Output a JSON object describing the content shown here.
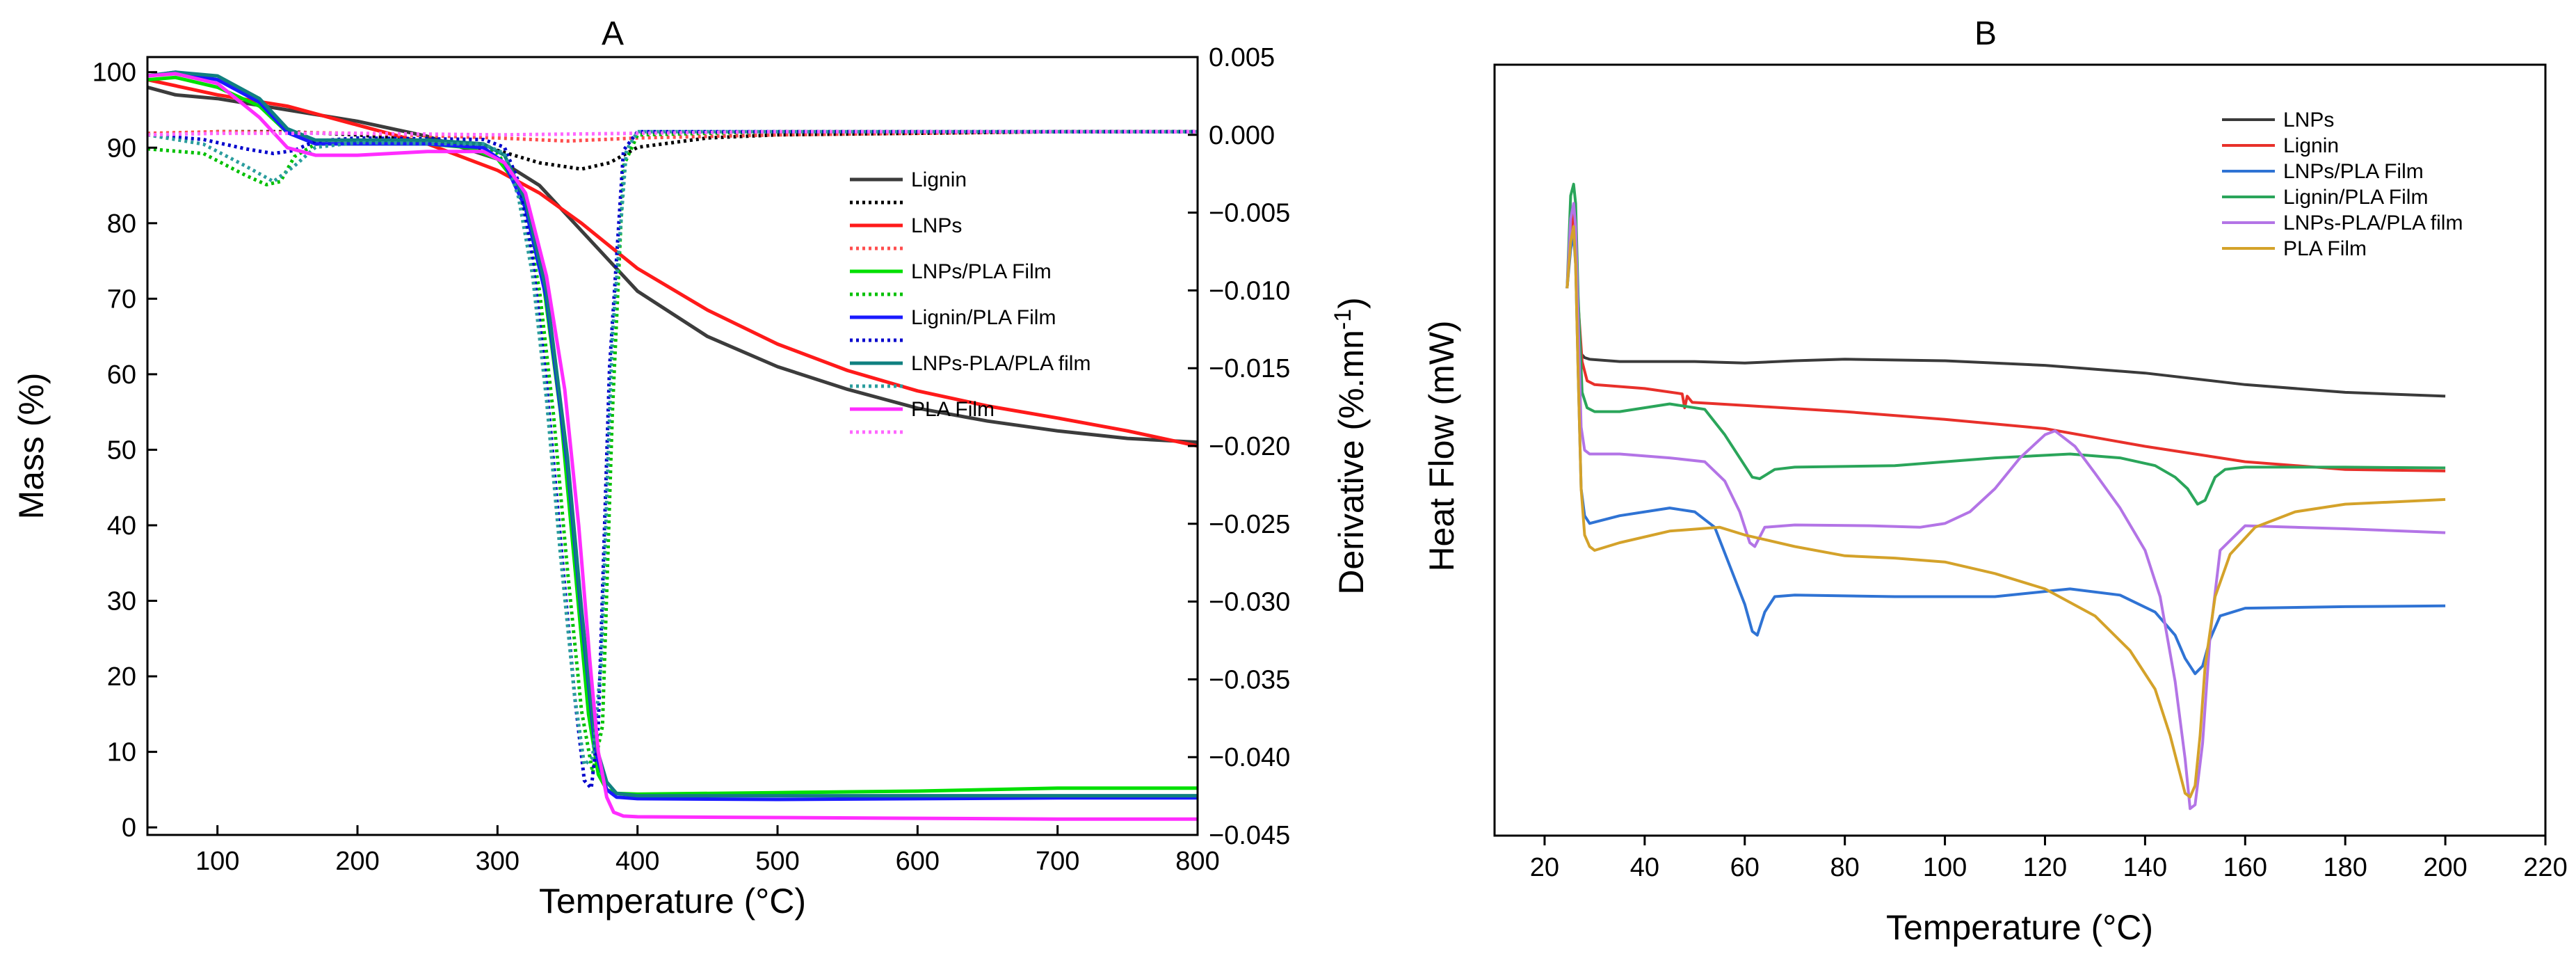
{
  "chart_data": [
    {
      "panel": "A",
      "type": "line",
      "title": "A",
      "xlabel": "Temperature (°C)",
      "ylabel": "Mass (%)",
      "y2label": "Derivative (%.mn-1)",
      "xlim": [
        50,
        800
      ],
      "ylim": [
        -1,
        102
      ],
      "y2lim": [
        -0.045,
        0.005
      ],
      "xticks": [
        100,
        200,
        300,
        400,
        500,
        600,
        700,
        800
      ],
      "yticks": [
        0,
        10,
        20,
        30,
        40,
        50,
        60,
        70,
        80,
        90,
        100
      ],
      "y2ticks": [
        0.005,
        0.0,
        -0.005,
        -0.01,
        -0.015,
        -0.02,
        -0.025,
        -0.03,
        -0.035,
        -0.04,
        -0.045
      ],
      "y2ticklabels": [
        "0.005",
        "0.000",
        "−0.005",
        "−0.010",
        "−0.015",
        "−0.020",
        "−0.025",
        "−0.030",
        "−0.035",
        "−0.040",
        "−0.045"
      ],
      "legend_position": "right",
      "series": [
        {
          "name": "Lignin",
          "color": "#3c3c3c",
          "style": "solid",
          "axis": "left",
          "x": [
            50,
            70,
            100,
            150,
            200,
            250,
            300,
            330,
            360,
            380,
            400,
            450,
            500,
            550,
            600,
            650,
            700,
            750,
            800
          ],
          "y": [
            98,
            97,
            96.5,
            95,
            93.5,
            91.5,
            88.5,
            85,
            79,
            75,
            71,
            65,
            61,
            58,
            55.5,
            53.8,
            52.5,
            51.5,
            51
          ]
        },
        {
          "name": "Lignin",
          "color": "#000000",
          "style": "dotted",
          "axis": "right",
          "x": [
            50,
            100,
            150,
            200,
            250,
            300,
            330,
            360,
            380,
            400,
            450,
            500,
            600,
            700,
            800
          ],
          "y": [
            0.0,
            0.0002,
            0.0002,
            0.0,
            -0.0004,
            -0.001,
            -0.0018,
            -0.0022,
            -0.0018,
            -0.0008,
            -0.0002,
            0.0,
            0.0001,
            0.0002,
            0.0002
          ]
        },
        {
          "name": "LNPs",
          "color": "#ff1a1a",
          "style": "solid",
          "axis": "left",
          "x": [
            50,
            100,
            150,
            200,
            250,
            300,
            330,
            360,
            380,
            400,
            450,
            500,
            550,
            600,
            650,
            700,
            750,
            800
          ],
          "y": [
            99,
            97,
            95.5,
            93,
            90.5,
            87,
            84,
            80,
            77,
            74,
            68.5,
            64,
            60.5,
            57.8,
            55.8,
            54.2,
            52.5,
            50.5
          ]
        },
        {
          "name": "LNPs",
          "color": "#ff4d4d",
          "style": "dotted",
          "axis": "right",
          "x": [
            50,
            100,
            200,
            300,
            350,
            400,
            500,
            600,
            700,
            800
          ],
          "y": [
            0.0001,
            0.0002,
            0.0001,
            -0.0002,
            -0.0004,
            -0.0002,
            0.0,
            0.0001,
            0.0002,
            0.0002
          ]
        },
        {
          "name": "LNPs/PLA Film",
          "color": "#00e000",
          "style": "solid",
          "axis": "left",
          "x": [
            50,
            70,
            100,
            130,
            150,
            170,
            200,
            250,
            280,
            300,
            315,
            330,
            345,
            355,
            365,
            372,
            378,
            385,
            400,
            500,
            600,
            700,
            800
          ],
          "y": [
            99,
            99.3,
            98,
            95.5,
            92,
            90.5,
            90.5,
            90.5,
            90,
            88.5,
            85,
            76,
            55,
            35,
            15,
            7,
            5,
            4.5,
            4.4,
            4.6,
            4.8,
            5.2,
            5.2
          ]
        },
        {
          "name": "LNPs/PLA Film",
          "color": "#00c000",
          "style": "dotted",
          "axis": "right",
          "x": [
            50,
            90,
            120,
            135,
            145,
            155,
            170,
            200,
            250,
            290,
            300,
            310,
            320,
            330,
            340,
            350,
            360,
            368,
            375,
            382,
            390,
            400,
            500,
            600,
            700,
            800
          ],
          "y": [
            -0.0009,
            -0.0012,
            -0.0026,
            -0.0032,
            -0.003,
            -0.0014,
            -0.0006,
            -0.0005,
            -0.0005,
            -0.0008,
            -0.0012,
            -0.0025,
            -0.005,
            -0.01,
            -0.018,
            -0.028,
            -0.037,
            -0.041,
            -0.038,
            -0.018,
            -0.002,
            0.0,
            0.0002,
            0.0002,
            0.0002,
            0.0002
          ]
        },
        {
          "name": "Lignin/PLA Film",
          "color": "#1a1aff",
          "style": "solid",
          "axis": "left",
          "x": [
            50,
            70,
            100,
            130,
            150,
            170,
            200,
            250,
            290,
            305,
            320,
            335,
            350,
            360,
            370,
            378,
            385,
            400,
            500,
            600,
            700,
            800
          ],
          "y": [
            99.5,
            100,
            99,
            96,
            92,
            90.5,
            90.5,
            90.5,
            90,
            88,
            82,
            70,
            48,
            28,
            10,
            5,
            4,
            3.8,
            3.7,
            3.8,
            3.9,
            3.9
          ]
        },
        {
          "name": "Lignin/PLA Film",
          "color": "#0000cc",
          "style": "dotted",
          "axis": "right",
          "x": [
            50,
            90,
            120,
            140,
            155,
            170,
            200,
            290,
            305,
            315,
            325,
            335,
            345,
            355,
            362,
            367,
            372,
            380,
            390,
            400,
            800
          ],
          "y": [
            0.0,
            -0.0003,
            -0.0009,
            -0.0012,
            -0.001,
            -0.0004,
            -0.0002,
            -0.0003,
            -0.0008,
            -0.003,
            -0.008,
            -0.016,
            -0.026,
            -0.036,
            -0.0415,
            -0.042,
            -0.038,
            -0.015,
            -0.001,
            0.0002,
            0.0002
          ]
        },
        {
          "name": "LNPs-PLA/PLA film",
          "color": "#108080",
          "style": "solid",
          "axis": "left",
          "x": [
            50,
            70,
            100,
            130,
            150,
            170,
            200,
            250,
            290,
            305,
            320,
            335,
            350,
            360,
            370,
            378,
            385,
            400,
            800
          ],
          "y": [
            99.5,
            100,
            99.5,
            96.5,
            92.5,
            91,
            91,
            91,
            90.5,
            89,
            83,
            71,
            49,
            29,
            11,
            6,
            4.5,
            4.2,
            4.2
          ]
        },
        {
          "name": "LNPs-PLA/PLA film",
          "color": "#2a9d9d",
          "style": "dotted",
          "axis": "right",
          "x": [
            50,
            90,
            120,
            140,
            155,
            170,
            200,
            290,
            305,
            315,
            325,
            335,
            345,
            355,
            362,
            368,
            374,
            382,
            392,
            400,
            800
          ],
          "y": [
            0.0,
            -0.0006,
            -0.002,
            -0.003,
            -0.002,
            -0.0008,
            -0.0005,
            -0.0006,
            -0.0012,
            -0.004,
            -0.009,
            -0.017,
            -0.027,
            -0.036,
            -0.0405,
            -0.04,
            -0.034,
            -0.013,
            -0.001,
            0.0002,
            0.0002
          ]
        },
        {
          "name": "PLA Film",
          "color": "#ff2dff",
          "style": "solid",
          "axis": "left",
          "x": [
            50,
            70,
            100,
            130,
            150,
            170,
            200,
            250,
            290,
            305,
            320,
            335,
            348,
            358,
            366,
            372,
            378,
            383,
            390,
            400,
            500,
            600,
            700,
            800
          ],
          "y": [
            99.5,
            99.8,
            98.5,
            94,
            90,
            89,
            89,
            89.5,
            89.5,
            88,
            84,
            73,
            58,
            40,
            22,
            10,
            4,
            2,
            1.5,
            1.4,
            1.3,
            1.2,
            1.1,
            1.1
          ]
        },
        {
          "name": "PLA Film",
          "color": "#ff66ff",
          "style": "dotted",
          "axis": "right",
          "x": [
            50,
            100,
            200,
            300,
            400,
            500,
            600,
            700,
            800
          ],
          "y": [
            0.0,
            0.0001,
            0.0001,
            0.0,
            0.0001,
            0.0002,
            0.0002,
            0.0002,
            0.0002
          ]
        }
      ]
    },
    {
      "panel": "B",
      "type": "line",
      "title": "B",
      "xlabel": "Temperature (°C)",
      "ylabel": "Heat Flow (mW)",
      "xlim": [
        10,
        220
      ],
      "ylim": [
        0,
        100
      ],
      "xticks": [
        20,
        40,
        60,
        80,
        100,
        120,
        140,
        160,
        180,
        200,
        220
      ],
      "legend_position": "top-right",
      "series": [
        {
          "name": "LNPs",
          "color": "#3a3a3a",
          "x": [
            24.5,
            25.2,
            25.8,
            26.2,
            26.7,
            27.3,
            28,
            29,
            35,
            50,
            60,
            70,
            80,
            100,
            120,
            140,
            160,
            180,
            200
          ],
          "y": [
            71,
            77,
            79,
            76,
            66,
            62.5,
            62,
            61.8,
            61.5,
            61.5,
            61.3,
            61.6,
            61.8,
            61.6,
            61,
            60,
            58.5,
            57.5,
            57
          ]
        },
        {
          "name": "Lignin",
          "color": "#e8302a",
          "x": [
            24.5,
            25.2,
            25.8,
            26.2,
            26.7,
            27.5,
            28.5,
            30,
            40,
            47.5,
            48,
            48.5,
            49.5,
            60,
            80,
            100,
            120,
            140,
            160,
            180,
            200
          ],
          "y": [
            71,
            78,
            81,
            78,
            69,
            61.5,
            59,
            58.5,
            58,
            57.3,
            55.5,
            57,
            56.2,
            55.8,
            55,
            54,
            52.8,
            50.5,
            48.5,
            47.5,
            47.3
          ]
        },
        {
          "name": "LNPs/PLA Film",
          "color": "#2f73d4",
          "x": [
            24.5,
            25.2,
            25.8,
            26.2,
            26.7,
            27.3,
            28,
            29,
            35,
            45,
            50,
            54,
            57,
            60,
            61.5,
            62.5,
            64,
            66,
            70,
            90,
            110,
            125,
            135,
            142,
            146,
            148,
            150,
            151.5,
            153,
            155,
            160,
            180,
            200
          ],
          "y": [
            71,
            76,
            78,
            74,
            60,
            45,
            41.5,
            40.5,
            41.5,
            42.5,
            42,
            40,
            35,
            30,
            26.5,
            26,
            29,
            31,
            31.2,
            31,
            31,
            32,
            31.2,
            29,
            26,
            23,
            21,
            22,
            25.5,
            28.5,
            29.5,
            29.7,
            29.8
          ]
        },
        {
          "name": "Lignin/PLA Film",
          "color": "#2aa55a",
          "x": [
            24.5,
            25.2,
            25.8,
            26.2,
            26.7,
            27.5,
            28.5,
            30,
            35,
            45,
            52,
            56,
            60,
            61.5,
            63,
            66,
            70,
            90,
            110,
            125,
            135,
            142,
            146,
            148.5,
            150.5,
            152,
            154,
            156,
            160,
            180,
            200
          ],
          "y": [
            71,
            83,
            84.5,
            82,
            70,
            57.5,
            55.5,
            55,
            55,
            56,
            55.3,
            52,
            48,
            46.5,
            46.3,
            47.5,
            47.8,
            48,
            49,
            49.5,
            49,
            48,
            46.5,
            45,
            43,
            43.5,
            46.5,
            47.5,
            47.8,
            47.8,
            47.7
          ]
        },
        {
          "name": "LNPs-PLA/PLA film",
          "color": "#b374e6",
          "x": [
            24.5,
            25.2,
            25.8,
            26.2,
            26.7,
            27.3,
            28,
            29,
            35,
            45,
            52,
            56,
            59,
            61,
            62,
            64,
            70,
            85,
            95,
            100,
            105,
            110,
            115,
            120,
            122,
            126,
            130,
            135,
            140,
            143,
            146,
            148,
            149,
            150,
            151.5,
            153,
            155,
            160,
            180,
            200
          ],
          "y": [
            71,
            80,
            82,
            79,
            67,
            53,
            50,
            49.5,
            49.5,
            49,
            48.5,
            46,
            42,
            38,
            37.5,
            40,
            40.3,
            40.2,
            40,
            40.5,
            42,
            45,
            49,
            52,
            52.5,
            50.5,
            47,
            42.5,
            37,
            31,
            20,
            10,
            3.5,
            4,
            12,
            26,
            37,
            40.2,
            39.8,
            39.3
          ]
        },
        {
          "name": "PLA Film",
          "color": "#d4a22a",
          "x": [
            24.5,
            25.2,
            25.8,
            26.2,
            26.7,
            27.3,
            28,
            29,
            30,
            35,
            45,
            55,
            60,
            70,
            80,
            90,
            100,
            110,
            120,
            130,
            137,
            142,
            145,
            147,
            148,
            149,
            150,
            151,
            152,
            154,
            157,
            162,
            170,
            180,
            200
          ],
          "y": [
            71,
            77,
            79,
            74,
            60,
            45,
            39,
            37.5,
            37,
            38,
            39.5,
            40,
            39,
            37.5,
            36.3,
            36,
            35.5,
            34,
            32,
            28.5,
            24,
            19,
            13,
            8,
            5.5,
            5,
            6.5,
            13,
            22,
            31,
            36.5,
            40,
            42,
            43,
            43.6
          ]
        }
      ]
    }
  ]
}
